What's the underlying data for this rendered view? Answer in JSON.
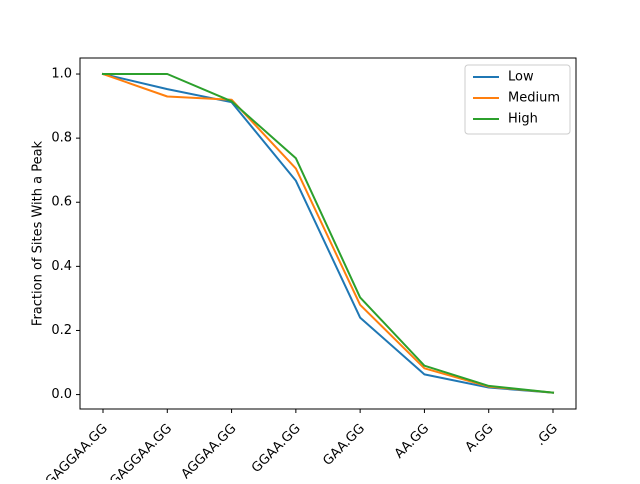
{
  "chart_data": {
    "type": "line",
    "title": "",
    "xlabel": "",
    "ylabel": "Fraction of Sites With a Peak",
    "categories": [
      "GAGGAA.GG",
      "GAGGAA.GG",
      "AGGAA.GG",
      "GGAA.GG",
      "GAA.GG",
      "AA.GG",
      "A.GG",
      ".GG"
    ],
    "ylim": [
      -0.045,
      1.05
    ],
    "yticks": [
      0.0,
      0.2,
      0.4,
      0.6,
      0.8,
      1.0
    ],
    "ytick_labels": [
      "0.0",
      "0.2",
      "0.4",
      "0.6",
      "0.8",
      "1.0"
    ],
    "grid": false,
    "legend_position": "top-right",
    "series": [
      {
        "name": "Low",
        "color": "#1f77b4",
        "values": [
          1.0,
          0.953,
          0.912,
          0.667,
          0.24,
          0.063,
          0.022,
          0.006
        ]
      },
      {
        "name": "Medium",
        "color": "#ff7f0e",
        "values": [
          1.0,
          0.93,
          0.92,
          0.705,
          0.28,
          0.082,
          0.025,
          0.006
        ]
      },
      {
        "name": "High",
        "color": "#2ca02c",
        "values": [
          1.0,
          1.0,
          0.915,
          0.737,
          0.303,
          0.09,
          0.027,
          0.006
        ]
      }
    ]
  }
}
